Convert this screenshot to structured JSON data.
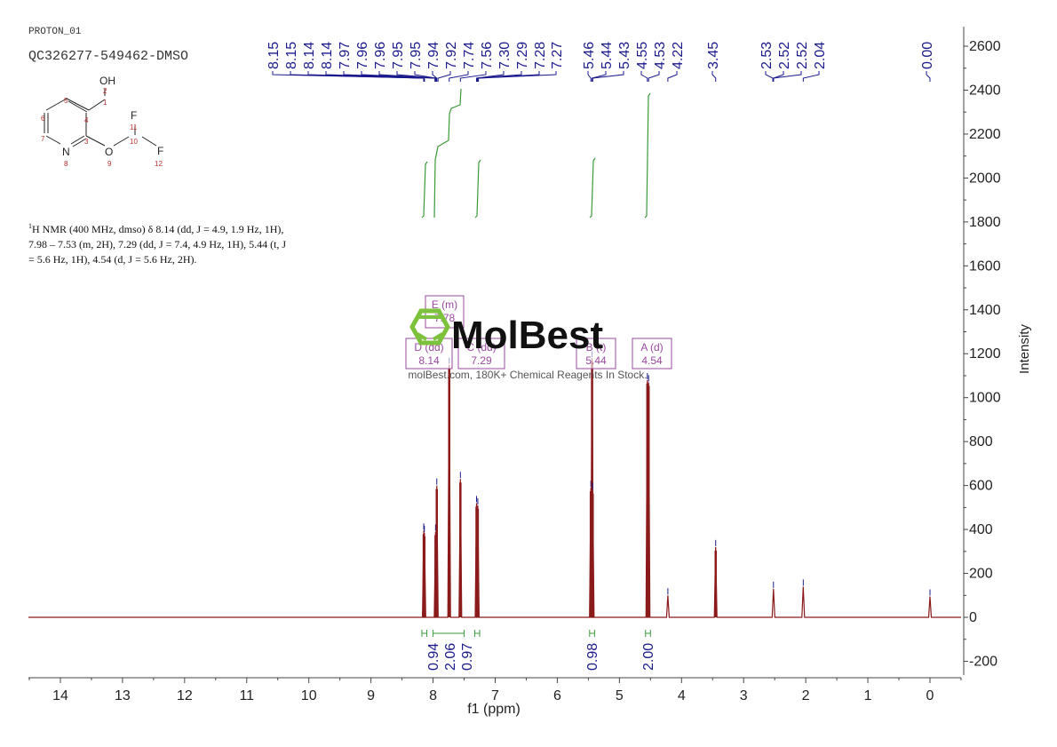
{
  "header": {
    "experiment": "PROTON_01",
    "sample_id": "QC326277-549462-DMSO"
  },
  "structure": {
    "atoms": [
      {
        "label": "OH",
        "num": "2"
      },
      {
        "label": "",
        "num": "1"
      },
      {
        "label": "",
        "num": "4"
      },
      {
        "label": "",
        "num": "5"
      },
      {
        "label": "",
        "num": "6"
      },
      {
        "label": "",
        "num": "7"
      },
      {
        "label": "N",
        "num": "8"
      },
      {
        "label": "",
        "num": "3"
      },
      {
        "label": "O",
        "num": "9"
      },
      {
        "label": "",
        "num": "10"
      },
      {
        "label": "F",
        "num": "11"
      },
      {
        "label": "F",
        "num": "12"
      }
    ]
  },
  "nmr_description": {
    "line1": "H NMR (400 MHz, dmso) δ 8.14 (dd, J = 4.9, 1.9 Hz, 1H),",
    "line2": "7.98 – 7.53 (m, 2H), 7.29 (dd, J = 7.4, 4.9 Hz, 1H), 5.44 (t, J",
    "line3": "= 5.6 Hz, 1H), 4.54 (d, J = 5.6 Hz, 2H).",
    "superscript": "1"
  },
  "watermark": {
    "brand": "MolBest",
    "tagline": "molBest.com, 180K+ Chemical Reagents In Stock."
  },
  "chart_data": {
    "type": "line",
    "title": "",
    "xlabel": "f1 (ppm)",
    "ylabel": "Intensity",
    "xlim": [
      14.5,
      -0.5
    ],
    "ylim": [
      -250,
      2650
    ],
    "x_ticks": [
      14,
      13,
      12,
      11,
      10,
      9,
      8,
      7,
      6,
      5,
      4,
      3,
      2,
      1,
      0
    ],
    "y_ticks": [
      -200,
      0,
      200,
      400,
      600,
      800,
      1000,
      1200,
      1400,
      1600,
      1800,
      2000,
      2200,
      2400,
      2600
    ],
    "grid": false,
    "peaks": [
      {
        "ppm": 8.15,
        "intensity": 395
      },
      {
        "ppm": 8.14,
        "intensity": 385
      },
      {
        "ppm": 7.96,
        "intensity": 390
      },
      {
        "ppm": 7.95,
        "intensity": 380
      },
      {
        "ppm": 7.94,
        "intensity": 600
      },
      {
        "ppm": 7.74,
        "intensity": 1150
      },
      {
        "ppm": 7.56,
        "intensity": 630
      },
      {
        "ppm": 7.3,
        "intensity": 520
      },
      {
        "ppm": 7.28,
        "intensity": 510
      },
      {
        "ppm": 5.46,
        "intensity": 590
      },
      {
        "ppm": 5.44,
        "intensity": 1180
      },
      {
        "ppm": 5.43,
        "intensity": 580
      },
      {
        "ppm": 4.55,
        "intensity": 1080
      },
      {
        "ppm": 4.53,
        "intensity": 1070
      },
      {
        "ppm": 4.22,
        "intensity": 100
      },
      {
        "ppm": 3.45,
        "intensity": 320
      },
      {
        "ppm": 2.52,
        "intensity": 130
      },
      {
        "ppm": 2.04,
        "intensity": 140
      },
      {
        "ppm": 0.0,
        "intensity": 95
      }
    ],
    "peak_labels": [
      "8.15",
      "8.15",
      "8.14",
      "8.14",
      "7.97",
      "7.96",
      "7.96",
      "7.95",
      "7.95",
      "7.94",
      "7.92",
      "7.74",
      "7.56",
      "7.30",
      "7.29",
      "7.28",
      "7.27",
      "5.46",
      "5.44",
      "5.43",
      "4.55",
      "4.53",
      "4.22",
      "3.45",
      "2.53",
      "2.52",
      "2.52",
      "2.04",
      "0.00"
    ],
    "integrals": [
      {
        "ppm_from": 8.18,
        "ppm_to": 8.1,
        "value": "0.94"
      },
      {
        "ppm_from": 8.0,
        "ppm_to": 7.5,
        "value": "2.06"
      },
      {
        "ppm_from": 7.33,
        "ppm_to": 7.25,
        "value": "0.97"
      },
      {
        "ppm_from": 5.48,
        "ppm_to": 5.4,
        "value": "0.98"
      },
      {
        "ppm_from": 4.58,
        "ppm_to": 4.5,
        "value": "2.00"
      }
    ],
    "multiplets": [
      {
        "id": "E",
        "mult": "(m)",
        "shift": "7.78"
      },
      {
        "id": "D",
        "mult": "(dd)",
        "shift": "8.14"
      },
      {
        "id": "C",
        "mult": "(dd)",
        "shift": "7.29"
      },
      {
        "id": "B",
        "mult": "(t)",
        "shift": "5.44"
      },
      {
        "id": "A",
        "mult": "(d)",
        "shift": "4.54"
      }
    ],
    "colors": {
      "spectrum": "#8b1a1a",
      "peak_labels": "#1a1a8c",
      "integral": "#3a9a3a",
      "multiplet_box": "#9a4aa0"
    }
  }
}
